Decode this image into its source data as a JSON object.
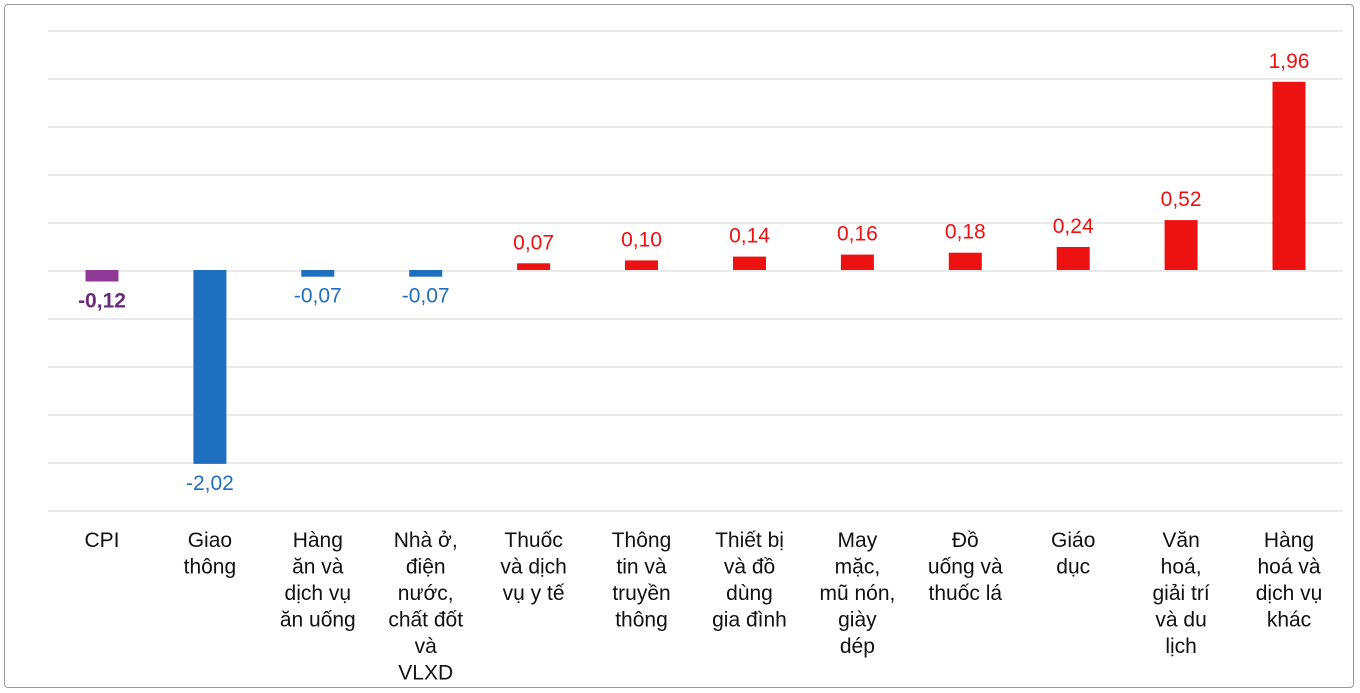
{
  "chart_data": {
    "type": "bar",
    "title": "",
    "xlabel": "",
    "ylabel": "",
    "ylim": [
      -2.5,
      2.5
    ],
    "grid": true,
    "legend": "none",
    "categories": [
      [
        "CPI"
      ],
      [
        "Giao",
        "thông"
      ],
      [
        "Hàng",
        "ăn và",
        "dịch vụ",
        "ăn uống"
      ],
      [
        "Nhà ở,",
        "điện",
        "nước,",
        "chất đốt",
        "và",
        "VLXD"
      ],
      [
        "Thuốc",
        "và dịch",
        "vụ y tế"
      ],
      [
        "Thông",
        "tin và",
        "truyền",
        "thông"
      ],
      [
        "Thiết bị",
        "và đồ",
        "dùng",
        "gia đình"
      ],
      [
        "May",
        "mặc,",
        "mũ nón,",
        "giày",
        "dép"
      ],
      [
        "Đồ",
        "uống và",
        "thuốc lá"
      ],
      [
        "Giáo",
        "dục"
      ],
      [
        "Văn",
        "hoá,",
        "giải trí",
        "và du",
        "lịch"
      ],
      [
        "Hàng",
        "hoá và",
        "dịch vụ",
        "khác"
      ]
    ],
    "values": [
      -0.12,
      -2.02,
      -0.07,
      -0.07,
      0.07,
      0.1,
      0.14,
      0.16,
      0.18,
      0.24,
      0.52,
      1.96
    ],
    "value_labels": [
      "-0,12",
      "-2,02",
      "-0,07",
      "-0,07",
      "0,07",
      "0,10",
      "0,14",
      "0,16",
      "0,18",
      "0,24",
      "0,52",
      "1,96"
    ],
    "colors": [
      "#8e3a96",
      "#1f6fc0",
      "#1f6fc0",
      "#1f6fc0",
      "#ee1111",
      "#ee1111",
      "#ee1111",
      "#ee1111",
      "#ee1111",
      "#ee1111",
      "#ee1111",
      "#ee1111"
    ],
    "label_colors": [
      "#6b2a7a",
      "#1f6fc0",
      "#1f6fc0",
      "#1f6fc0",
      "#ee1111",
      "#ee1111",
      "#ee1111",
      "#ee1111",
      "#ee1111",
      "#ee1111",
      "#ee1111",
      "#ee1111"
    ],
    "bold_labels": [
      true,
      false,
      false,
      false,
      false,
      false,
      false,
      false,
      false,
      false,
      false,
      false
    ],
    "gridline_color": "#d4d4d4"
  }
}
